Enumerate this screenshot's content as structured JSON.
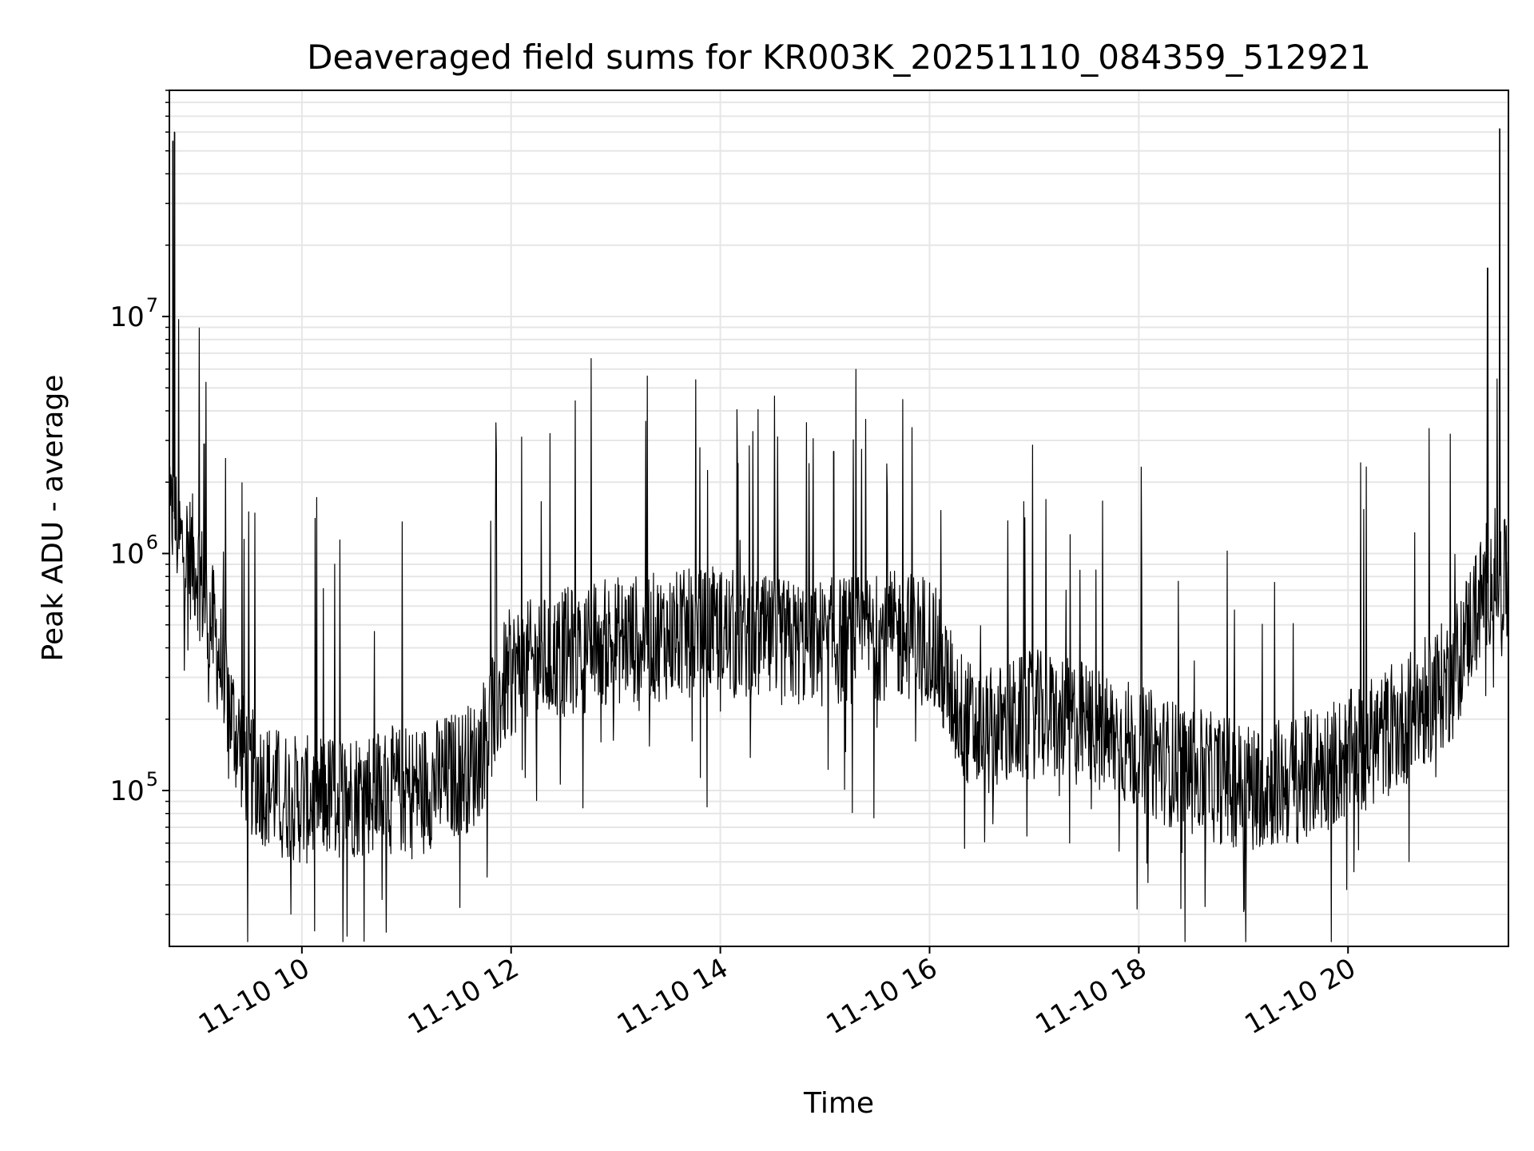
{
  "chart_data": {
    "type": "line",
    "title": "Deaveraged field sums for KR003K_20251110_084359_512921",
    "xlabel": "Time",
    "ylabel": "Peak ADU - average",
    "y_scale": "log",
    "ylim": [
      22000,
      90000000
    ],
    "xlim": [
      "2025-11-10 08:44",
      "2025-11-10 21:32"
    ],
    "grid": true,
    "x_ticks": [
      {
        "t": "2025-11-10 10:00",
        "label": "11-10 10"
      },
      {
        "t": "2025-11-10 12:00",
        "label": "11-10 12"
      },
      {
        "t": "2025-11-10 14:00",
        "label": "11-10 14"
      },
      {
        "t": "2025-11-10 16:00",
        "label": "11-10 16"
      },
      {
        "t": "2025-11-10 18:00",
        "label": "11-10 18"
      },
      {
        "t": "2025-11-10 20:00",
        "label": "11-10 20"
      }
    ],
    "y_ticks": [
      {
        "value": 100000,
        "base": "10",
        "exp": "5"
      },
      {
        "value": 1000000,
        "base": "10",
        "exp": "6"
      },
      {
        "value": 10000000,
        "base": "10",
        "exp": "7"
      }
    ],
    "series": [
      {
        "color": "#000000",
        "x": [
          "2025-11-10 08:44",
          "2025-11-10 08:46",
          "2025-11-10 08:48",
          "2025-11-10 08:50",
          "2025-11-10 08:55",
          "2025-11-10 09:00",
          "2025-11-10 09:05",
          "2025-11-10 09:10",
          "2025-11-10 09:15",
          "2025-11-10 09:20",
          "2025-11-10 09:30",
          "2025-11-10 09:45",
          "2025-11-10 10:00",
          "2025-11-10 10:20",
          "2025-11-10 10:40",
          "2025-11-10 11:00",
          "2025-11-10 11:20",
          "2025-11-10 11:40",
          "2025-11-10 11:50",
          "2025-11-10 12:00",
          "2025-11-10 12:30",
          "2025-11-10 13:00",
          "2025-11-10 13:30",
          "2025-11-10 14:00",
          "2025-11-10 14:30",
          "2025-11-10 15:00",
          "2025-11-10 15:30",
          "2025-11-10 16:00",
          "2025-11-10 16:10",
          "2025-11-10 16:20",
          "2025-11-10 16:30",
          "2025-11-10 17:00",
          "2025-11-10 17:30",
          "2025-11-10 18:00",
          "2025-11-10 18:30",
          "2025-11-10 19:00",
          "2025-11-10 19:30",
          "2025-11-10 20:00",
          "2025-11-10 20:30",
          "2025-11-10 21:00",
          "2025-11-10 21:10",
          "2025-11-10 21:20",
          "2025-11-10 21:25",
          "2025-11-10 21:32"
        ],
        "y": [
          1200000,
          1500000,
          1300000,
          1100000,
          1000000,
          900000,
          600000,
          450000,
          300000,
          200000,
          120000,
          100000,
          90000,
          95000,
          100000,
          100000,
          110000,
          130000,
          220000,
          320000,
          380000,
          430000,
          450000,
          470000,
          420000,
          420000,
          450000,
          450000,
          280000,
          200000,
          170000,
          210000,
          190000,
          150000,
          120000,
          105000,
          110000,
          140000,
          190000,
          300000,
          500000,
          750000,
          850000,
          700000
        ],
        "spikes": [
          {
            "t": "2025-11-10 08:46",
            "value": 55000000
          },
          {
            "t": "2025-11-10 08:47",
            "value": 60000000
          },
          {
            "t": "2025-11-10 09:04",
            "value": 2900000
          },
          {
            "t": "2025-11-10 14:10",
            "value": 2400000
          },
          {
            "t": "2025-11-10 15:05",
            "value": 2700000
          },
          {
            "t": "2025-11-10 21:20",
            "value": 16000000
          },
          {
            "t": "2025-11-10 21:27",
            "value": 62000000
          }
        ]
      }
    ]
  }
}
